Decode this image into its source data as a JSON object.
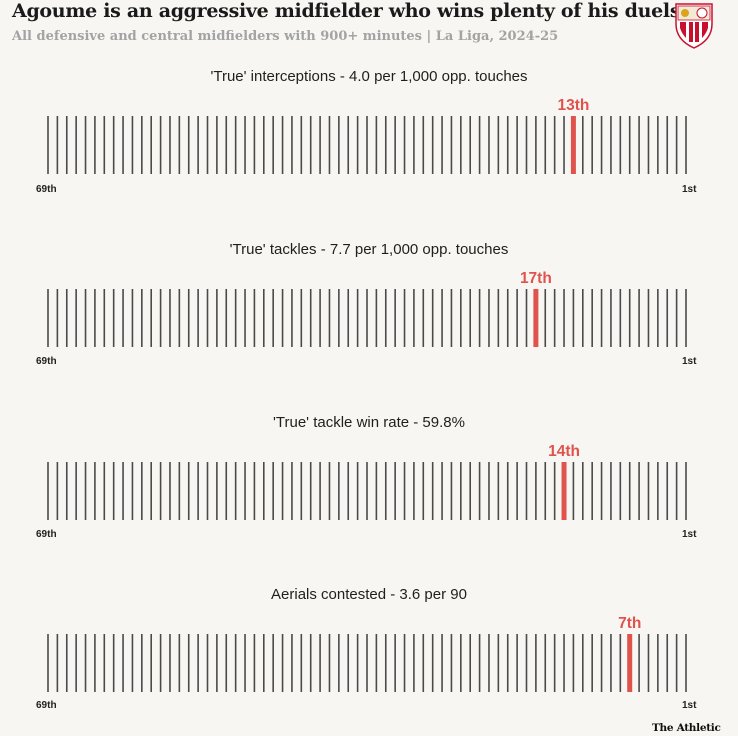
{
  "header": {
    "title": "Agoume is an aggressive midfielder who wins plenty of his duels",
    "subtitle": "All defensive and central midfielders with 900+ minutes | La Liga, 2024-25"
  },
  "colors": {
    "highlight": "#e0534d",
    "bar": "#4a4a4a",
    "background": "#f7f6f2"
  },
  "chart_data": [
    {
      "type": "bar",
      "title": "'True' interceptions - 4.0 per 1,000 opp. touches",
      "total_players": 69,
      "highlight_rank": 13,
      "highlight_label": "13th",
      "left_label": "69th",
      "right_label": "1st"
    },
    {
      "type": "bar",
      "title": "'True' tackles - 7.7 per 1,000 opp. touches",
      "total_players": 69,
      "highlight_rank": 17,
      "highlight_label": "17th",
      "left_label": "69th",
      "right_label": "1st"
    },
    {
      "type": "bar",
      "title": "'True' tackle win rate - 59.8%",
      "total_players": 69,
      "highlight_rank": 14,
      "highlight_label": "14th",
      "left_label": "69th",
      "right_label": "1st"
    },
    {
      "type": "bar",
      "title": "Aerials contested - 3.6 per 90",
      "total_players": 69,
      "highlight_rank": 7,
      "highlight_label": "7th",
      "left_label": "69th",
      "right_label": "1st"
    }
  ],
  "footer": {
    "source": "The Athletic"
  },
  "crest": {
    "icon": "sevilla-crest-icon"
  }
}
